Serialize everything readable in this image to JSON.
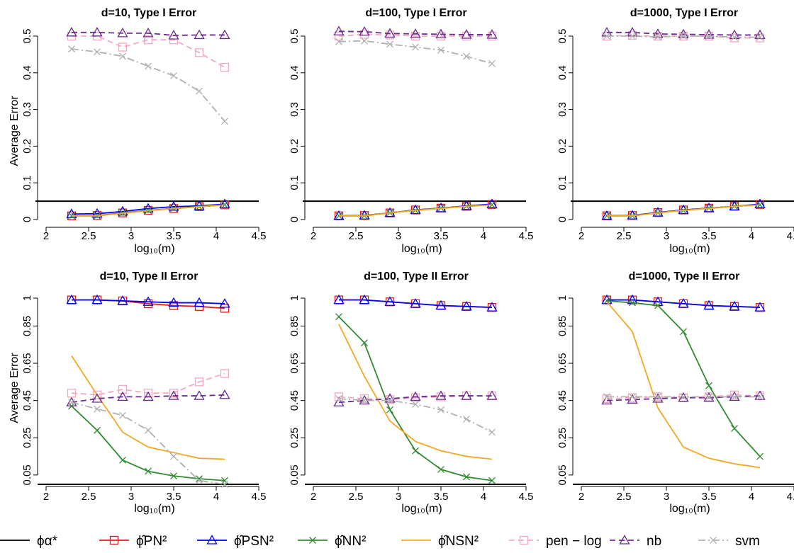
{
  "figure": {
    "x_tick_labels": [
      "2",
      "2.5",
      "3",
      "3.5",
      "4",
      "4.5"
    ],
    "x_label": "log₁₀(m)",
    "y_label": "Average Error"
  },
  "legend": [
    {
      "key": "oracle",
      "label": "ϕα*",
      "color": "#000000",
      "marker": "none",
      "dash": "solid"
    },
    {
      "key": "PN",
      "label": "ϕ̂PN²",
      "color": "#e31a1c",
      "marker": "square",
      "dash": "solid"
    },
    {
      "key": "PSN",
      "label": "ϕ̂PSN²",
      "color": "#0000ff",
      "marker": "triangle",
      "dash": "solid"
    },
    {
      "key": "NN",
      "label": "ϕ̂NN²",
      "color": "#2e8b2e",
      "marker": "x",
      "dash": "solid"
    },
    {
      "key": "NSN",
      "label": "ϕ̂NSN²",
      "color": "#f5a623",
      "marker": "none",
      "dash": "solid"
    },
    {
      "key": "penlog",
      "label": "pen − log",
      "color": "#f4a9c0",
      "marker": "square",
      "dash": "dashed"
    },
    {
      "key": "nb",
      "label": "nb",
      "color": "#6a2c91",
      "marker": "triangle",
      "dash": "dashed"
    },
    {
      "key": "svm",
      "label": "svm",
      "color": "#b0b0b0",
      "marker": "x",
      "dash": "dashdot"
    }
  ],
  "chart_data": [
    {
      "type": "line",
      "title": "d=10, Type I Error",
      "xlabel": "log₁₀(m)",
      "ylabel": "Average Error",
      "xlim": [
        2,
        4.5
      ],
      "ylim": [
        0,
        0.5
      ],
      "yticks": [
        0,
        0.1,
        0.2,
        0.3,
        0.4,
        0.5
      ],
      "yticklabels": [
        "0",
        "0.1",
        "0.2",
        "0.3",
        "0.4",
        "0.5"
      ],
      "hline": 0.05,
      "x": [
        2.3,
        2.6,
        2.9,
        3.2,
        3.5,
        3.8,
        4.1
      ],
      "series": [
        {
          "key": "PN",
          "values": [
            0.01,
            0.011,
            0.018,
            0.025,
            0.03,
            0.035,
            0.04
          ]
        },
        {
          "key": "PSN",
          "values": [
            0.015,
            0.016,
            0.022,
            0.03,
            0.035,
            0.037,
            0.042
          ]
        },
        {
          "key": "NN",
          "values": [
            0.01,
            0.01,
            0.018,
            0.025,
            0.03,
            0.035,
            0.04
          ]
        },
        {
          "key": "NSN",
          "values": [
            0.01,
            0.01,
            0.017,
            0.024,
            0.03,
            0.035,
            0.04
          ]
        },
        {
          "key": "penlog",
          "values": [
            0.5,
            0.5,
            0.47,
            0.49,
            0.49,
            0.455,
            0.415
          ]
        },
        {
          "key": "nb",
          "values": [
            0.51,
            0.51,
            0.508,
            0.508,
            0.502,
            0.503,
            0.503
          ]
        },
        {
          "key": "svm",
          "values": [
            0.465,
            0.457,
            0.445,
            0.418,
            0.392,
            0.35,
            0.268
          ]
        }
      ]
    },
    {
      "type": "line",
      "title": "d=100, Type I Error",
      "xlabel": "log₁₀(m)",
      "ylabel": "",
      "xlim": [
        2,
        4.5
      ],
      "ylim": [
        0,
        0.5
      ],
      "yticks": [
        0,
        0.1,
        0.2,
        0.3,
        0.4,
        0.5
      ],
      "yticklabels": [
        "0",
        "0.1",
        "0.2",
        "0.3",
        "0.4",
        "0.5"
      ],
      "hline": 0.05,
      "x": [
        2.3,
        2.6,
        2.9,
        3.2,
        3.5,
        3.8,
        4.1
      ],
      "series": [
        {
          "key": "PN",
          "values": [
            0.01,
            0.011,
            0.018,
            0.026,
            0.031,
            0.036,
            0.041
          ]
        },
        {
          "key": "PSN",
          "values": [
            0.01,
            0.011,
            0.018,
            0.026,
            0.031,
            0.037,
            0.042
          ]
        },
        {
          "key": "NN",
          "values": [
            0.01,
            0.01,
            0.018,
            0.025,
            0.031,
            0.036,
            0.04
          ]
        },
        {
          "key": "NSN",
          "values": [
            0.01,
            0.01,
            0.018,
            0.025,
            0.03,
            0.036,
            0.04
          ]
        },
        {
          "key": "penlog",
          "values": [
            0.5,
            0.505,
            0.503,
            0.5,
            0.5,
            0.5,
            0.5
          ]
        },
        {
          "key": "nb",
          "values": [
            0.513,
            0.512,
            0.507,
            0.506,
            0.505,
            0.504,
            0.504
          ]
        },
        {
          "key": "svm",
          "values": [
            0.485,
            0.487,
            0.478,
            0.47,
            0.462,
            0.445,
            0.425
          ]
        }
      ]
    },
    {
      "type": "line",
      "title": "d=1000, Type I Error",
      "xlabel": "log₁₀(m)",
      "ylabel": "",
      "xlim": [
        2,
        4.5
      ],
      "ylim": [
        0,
        0.5
      ],
      "yticks": [
        0,
        0.1,
        0.2,
        0.3,
        0.4,
        0.5
      ],
      "yticklabels": [
        "0",
        "0.1",
        "0.2",
        "0.3",
        "0.4",
        "0.5"
      ],
      "hline": 0.05,
      "x": [
        2.3,
        2.6,
        2.9,
        3.2,
        3.5,
        3.8,
        4.1
      ],
      "series": [
        {
          "key": "PN",
          "values": [
            0.01,
            0.011,
            0.019,
            0.026,
            0.031,
            0.036,
            0.041
          ]
        },
        {
          "key": "PSN",
          "values": [
            0.01,
            0.011,
            0.019,
            0.026,
            0.031,
            0.036,
            0.042
          ]
        },
        {
          "key": "NN",
          "values": [
            0.01,
            0.01,
            0.018,
            0.025,
            0.031,
            0.036,
            0.04
          ]
        },
        {
          "key": "NSN",
          "values": [
            0.01,
            0.01,
            0.018,
            0.025,
            0.03,
            0.036,
            0.04
          ]
        },
        {
          "key": "penlog",
          "values": [
            0.5,
            0.502,
            0.5,
            0.5,
            0.5,
            0.495,
            0.495
          ]
        },
        {
          "key": "nb",
          "values": [
            0.51,
            0.51,
            0.506,
            0.505,
            0.504,
            0.503,
            0.503
          ]
        },
        {
          "key": "svm",
          "values": [
            0.5,
            0.5,
            0.498,
            0.5,
            0.5,
            0.497,
            0.497
          ]
        }
      ]
    },
    {
      "type": "line",
      "title": "d=10, Type II Error",
      "xlabel": "log₁₀(m)",
      "ylabel": "Average Error",
      "xlim": [
        2,
        4.5
      ],
      "ylim": [
        0,
        1
      ],
      "yticks": [
        0.05,
        0.25,
        0.45,
        0.65,
        0.85,
        1
      ],
      "yticklabels": [
        "0.05",
        "0.25",
        "0.45",
        "0.65",
        "0.85",
        "1"
      ],
      "hline": 0,
      "x": [
        2.3,
        2.6,
        2.9,
        3.2,
        3.5,
        3.8,
        4.1
      ],
      "series": [
        {
          "key": "PN",
          "values": [
            0.99,
            0.99,
            0.985,
            0.97,
            0.96,
            0.955,
            0.945
          ]
        },
        {
          "key": "PSN",
          "values": [
            0.99,
            0.99,
            0.985,
            0.98,
            0.975,
            0.975,
            0.97
          ]
        },
        {
          "key": "NN",
          "values": [
            0.42,
            0.29,
            0.13,
            0.07,
            0.045,
            0.03,
            0.02
          ]
        },
        {
          "key": "NSN",
          "values": [
            0.69,
            0.48,
            0.28,
            0.2,
            0.17,
            0.14,
            0.135
          ]
        },
        {
          "key": "penlog",
          "values": [
            0.49,
            0.48,
            0.51,
            0.49,
            0.49,
            0.55,
            0.595
          ]
        },
        {
          "key": "nb",
          "values": [
            0.44,
            0.46,
            0.47,
            0.47,
            0.475,
            0.475,
            0.48
          ]
        },
        {
          "key": "svm",
          "values": [
            0.44,
            0.405,
            0.37,
            0.29,
            0.15,
            0.02,
            0.0
          ]
        }
      ]
    },
    {
      "type": "line",
      "title": "d=100, Type II Error",
      "xlabel": "log₁₀(m)",
      "ylabel": "",
      "xlim": [
        2,
        4.5
      ],
      "ylim": [
        0,
        1
      ],
      "yticks": [
        0.05,
        0.25,
        0.45,
        0.65,
        0.85,
        1
      ],
      "yticklabels": [
        "0.05",
        "0.25",
        "0.45",
        "0.65",
        "0.85",
        "1"
      ],
      "hline": 0,
      "x": [
        2.3,
        2.6,
        2.9,
        3.2,
        3.5,
        3.8,
        4.1
      ],
      "series": [
        {
          "key": "PN",
          "values": [
            0.99,
            0.99,
            0.98,
            0.97,
            0.96,
            0.955,
            0.95
          ]
        },
        {
          "key": "PSN",
          "values": [
            0.99,
            0.99,
            0.98,
            0.97,
            0.96,
            0.955,
            0.95
          ]
        },
        {
          "key": "NN",
          "values": [
            0.9,
            0.76,
            0.4,
            0.18,
            0.08,
            0.04,
            0.02
          ]
        },
        {
          "key": "NSN",
          "values": [
            0.86,
            0.58,
            0.34,
            0.23,
            0.18,
            0.15,
            0.135
          ]
        },
        {
          "key": "penlog",
          "values": [
            0.47,
            0.46,
            0.455,
            0.465,
            0.47,
            0.475,
            0.475
          ]
        },
        {
          "key": "nb",
          "values": [
            0.44,
            0.45,
            0.46,
            0.47,
            0.475,
            0.475,
            0.475
          ]
        },
        {
          "key": "svm",
          "values": [
            0.46,
            0.45,
            0.45,
            0.43,
            0.4,
            0.35,
            0.28
          ]
        }
      ]
    },
    {
      "type": "line",
      "title": "d=1000, Type II Error",
      "xlabel": "log₁₀(m)",
      "ylabel": "",
      "xlim": [
        2,
        4.5
      ],
      "ylim": [
        0,
        1
      ],
      "yticks": [
        0.05,
        0.25,
        0.45,
        0.65,
        0.85,
        1
      ],
      "yticklabels": [
        "0.05",
        "0.25",
        "0.45",
        "0.65",
        "0.85",
        "1"
      ],
      "hline": 0,
      "x": [
        2.3,
        2.6,
        2.9,
        3.2,
        3.5,
        3.8,
        4.1
      ],
      "series": [
        {
          "key": "PN",
          "values": [
            0.99,
            0.99,
            0.98,
            0.97,
            0.96,
            0.955,
            0.95
          ]
        },
        {
          "key": "PSN",
          "values": [
            0.99,
            0.99,
            0.98,
            0.97,
            0.96,
            0.955,
            0.95
          ]
        },
        {
          "key": "NN",
          "values": [
            0.985,
            0.975,
            0.96,
            0.82,
            0.53,
            0.3,
            0.15
          ]
        },
        {
          "key": "NSN",
          "values": [
            0.98,
            0.82,
            0.41,
            0.2,
            0.14,
            0.11,
            0.09
          ]
        },
        {
          "key": "penlog",
          "values": [
            0.46,
            0.465,
            0.47,
            0.465,
            0.47,
            0.48,
            0.475
          ]
        },
        {
          "key": "nb",
          "values": [
            0.45,
            0.455,
            0.46,
            0.465,
            0.465,
            0.47,
            0.475
          ]
        },
        {
          "key": "svm",
          "values": [
            0.47,
            0.47,
            0.47,
            0.47,
            0.47,
            0.47,
            0.47
          ]
        }
      ]
    }
  ]
}
